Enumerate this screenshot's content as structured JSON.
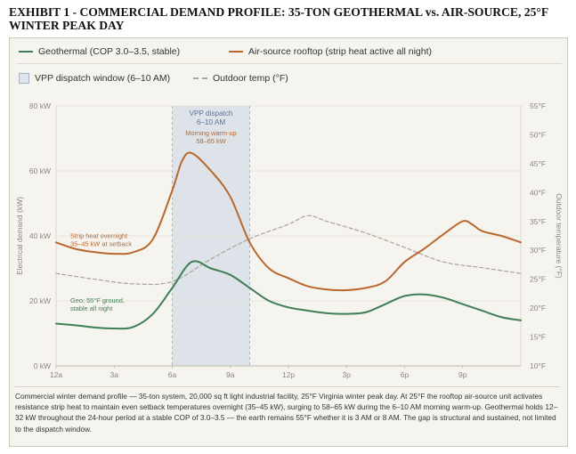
{
  "title": "EXHIBIT 1 - COMMERCIAL DEMAND PROFILE: 35-TON GEOTHERMAL vs. AIR-SOURCE, 25°F WINTER PEAK DAY",
  "legend": {
    "geo": "Geothermal (COP 3.0–3.5, stable)",
    "air": "Air-source rooftop (strip heat active all night)",
    "vpp": "VPP dispatch window (6–10 AM)",
    "temp": "Outdoor temp (°F)"
  },
  "colors": {
    "geo": "#3f7f55",
    "air": "#b8672e",
    "temp": "#a8a39a",
    "vpp_fill": "#d9dfe8",
    "vpp_text": "#5c7394"
  },
  "chart_data": {
    "type": "line",
    "x_ticks": [
      "12a",
      "3a",
      "6a",
      "9a",
      "12p",
      "3p",
      "6p",
      "9p"
    ],
    "x_range": [
      0,
      24
    ],
    "y_left": {
      "label": "Electrical demand (kW)",
      "ticks": [
        "0 kW",
        "20 kW",
        "40 kW",
        "60 kW",
        "80 kW"
      ],
      "range": [
        0,
        80
      ]
    },
    "y_right": {
      "label": "Outdoor temperature (°F)",
      "ticks": [
        "10°F",
        "15°F",
        "20°F",
        "25°F",
        "30°F",
        "35°F",
        "40°F",
        "45°F",
        "50°F",
        "55°F"
      ],
      "range": [
        10,
        55
      ]
    },
    "vpp_window": [
      6,
      10
    ],
    "series": [
      {
        "name": "Geothermal (COP 3.0–3.5, stable)",
        "axis": "left",
        "points": [
          [
            0,
            13
          ],
          [
            1,
            12.5
          ],
          [
            2,
            11.8
          ],
          [
            3,
            11.5
          ],
          [
            4,
            12
          ],
          [
            5,
            16
          ],
          [
            6,
            24
          ],
          [
            7,
            32
          ],
          [
            8,
            30
          ],
          [
            9,
            28
          ],
          [
            10,
            24
          ],
          [
            11,
            20
          ],
          [
            12,
            18
          ],
          [
            13,
            17
          ],
          [
            14,
            16.2
          ],
          [
            15,
            16
          ],
          [
            16,
            16.5
          ],
          [
            17,
            19
          ],
          [
            18,
            21.5
          ],
          [
            19,
            22
          ],
          [
            20,
            21
          ],
          [
            21,
            19
          ],
          [
            22,
            17
          ],
          [
            23,
            15
          ],
          [
            24,
            14
          ]
        ]
      },
      {
        "name": "Air-source rooftop (strip heat active all night)",
        "axis": "left",
        "points": [
          [
            0,
            38
          ],
          [
            1,
            36
          ],
          [
            2,
            35
          ],
          [
            3,
            34.5
          ],
          [
            4,
            35
          ],
          [
            5,
            39
          ],
          [
            6,
            54
          ],
          [
            6.5,
            63
          ],
          [
            7,
            65.5
          ],
          [
            8,
            60
          ],
          [
            9,
            52
          ],
          [
            10,
            38
          ],
          [
            11,
            30
          ],
          [
            12,
            27
          ],
          [
            13,
            24.5
          ],
          [
            14,
            23.5
          ],
          [
            15,
            23.3
          ],
          [
            16,
            24
          ],
          [
            17,
            26
          ],
          [
            18,
            32
          ],
          [
            19,
            36
          ],
          [
            20,
            40.5
          ],
          [
            21,
            44.5
          ],
          [
            21.5,
            43.5
          ],
          [
            22,
            41.5
          ],
          [
            23,
            40
          ],
          [
            24,
            38
          ]
        ]
      },
      {
        "name": "Outdoor temp (°F)",
        "axis": "right",
        "points": [
          [
            0,
            26
          ],
          [
            2,
            25
          ],
          [
            4,
            24.2
          ],
          [
            6,
            24.6
          ],
          [
            8,
            28.5
          ],
          [
            10,
            32
          ],
          [
            12,
            34.5
          ],
          [
            13,
            36
          ],
          [
            14,
            35
          ],
          [
            16,
            33
          ],
          [
            18,
            30.5
          ],
          [
            20,
            28
          ],
          [
            22,
            27
          ],
          [
            24,
            26
          ]
        ]
      }
    ],
    "annotations": {
      "vpp": [
        "VPP dispatch",
        "6–10 AM"
      ],
      "warmup": [
        "Morning warm-up",
        "58–65 kW"
      ],
      "strip": [
        "Strip heat overnight",
        "35–45 kW at setback"
      ],
      "geo": [
        "Geo: 55°F ground,",
        "stable all night"
      ]
    }
  },
  "caption": "Commercial winter demand profile — 35-ton system, 20,000 sq ft light industrial facility, 25°F Virginia winter peak day. At 25°F the rooftop air-source unit activates resistance strip heat to maintain even setback temperatures overnight (35–45 kW), surging to 58–65 kW during the 6–10 AM morning warm-up. Geothermal holds 12–32 kW throughout the 24-hour period at a stable COP of 3.0–3.5 — the earth remains 55°F whether it is 3 AM or 8 AM. The gap is structural and sustained, not limited to the dispatch window."
}
